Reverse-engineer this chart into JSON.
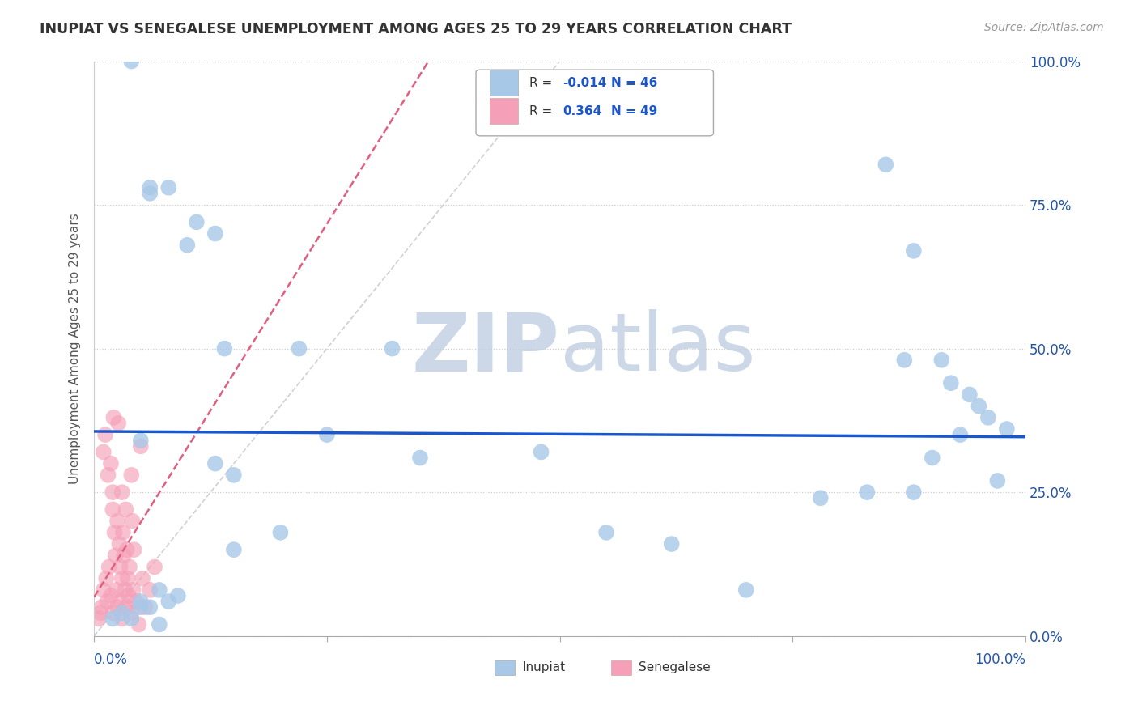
{
  "title": "INUPIAT VS SENEGALESE UNEMPLOYMENT AMONG AGES 25 TO 29 YEARS CORRELATION CHART",
  "source": "Source: ZipAtlas.com",
  "ylabel": "Unemployment Among Ages 25 to 29 years",
  "ytick_labels": [
    "0.0%",
    "25.0%",
    "50.0%",
    "75.0%",
    "100.0%"
  ],
  "ytick_values": [
    0,
    0.25,
    0.5,
    0.75,
    1.0
  ],
  "xlim": [
    0,
    1
  ],
  "ylim": [
    0,
    1
  ],
  "inupiat_R": -0.014,
  "inupiat_N": 46,
  "senegalese_R": 0.364,
  "senegalese_N": 49,
  "inupiat_color": "#a8c8e8",
  "senegalese_color": "#f5a0b8",
  "inupiat_line_color": "#1a56cc",
  "senegalese_line_color": "#e06080",
  "watermark_color": "#ccd8e8",
  "inupiat_x": [
    0.04,
    0.06,
    0.08,
    0.11,
    0.13,
    0.14,
    0.22,
    0.32,
    0.35,
    0.48,
    0.55,
    0.62,
    0.7,
    0.78,
    0.83,
    0.85,
    0.87,
    0.88,
    0.88,
    0.9,
    0.91,
    0.92,
    0.93,
    0.94,
    0.95,
    0.96,
    0.97,
    0.98,
    0.02,
    0.03,
    0.04,
    0.05,
    0.05,
    0.05,
    0.06,
    0.06,
    0.07,
    0.07,
    0.08,
    0.09,
    0.1,
    0.13,
    0.15,
    0.15,
    0.2,
    0.25
  ],
  "inupiat_y": [
    1.0,
    0.77,
    0.78,
    0.72,
    0.7,
    0.5,
    0.5,
    0.5,
    0.31,
    0.32,
    0.18,
    0.16,
    0.08,
    0.24,
    0.25,
    0.82,
    0.48,
    0.67,
    0.25,
    0.31,
    0.48,
    0.44,
    0.35,
    0.42,
    0.4,
    0.38,
    0.27,
    0.36,
    0.03,
    0.04,
    0.03,
    0.06,
    0.05,
    0.34,
    0.05,
    0.78,
    0.02,
    0.08,
    0.06,
    0.07,
    0.68,
    0.3,
    0.15,
    0.28,
    0.18,
    0.35
  ],
  "senegalese_x": [
    0.005,
    0.007,
    0.008,
    0.01,
    0.01,
    0.012,
    0.013,
    0.014,
    0.015,
    0.016,
    0.018,
    0.018,
    0.02,
    0.02,
    0.02,
    0.021,
    0.022,
    0.023,
    0.024,
    0.025,
    0.025,
    0.026,
    0.027,
    0.028,
    0.029,
    0.03,
    0.03,
    0.03,
    0.031,
    0.032,
    0.033,
    0.034,
    0.035,
    0.035,
    0.036,
    0.037,
    0.038,
    0.04,
    0.04,
    0.041,
    0.042,
    0.043,
    0.045,
    0.048,
    0.05,
    0.052,
    0.055,
    0.06,
    0.065
  ],
  "senegalese_y": [
    0.03,
    0.04,
    0.05,
    0.32,
    0.08,
    0.35,
    0.1,
    0.06,
    0.28,
    0.12,
    0.3,
    0.07,
    0.22,
    0.25,
    0.04,
    0.38,
    0.18,
    0.14,
    0.08,
    0.2,
    0.05,
    0.37,
    0.16,
    0.12,
    0.06,
    0.25,
    0.1,
    0.03,
    0.18,
    0.14,
    0.08,
    0.22,
    0.05,
    0.15,
    0.1,
    0.07,
    0.12,
    0.28,
    0.04,
    0.2,
    0.08,
    0.15,
    0.06,
    0.02,
    0.33,
    0.1,
    0.05,
    0.08,
    0.12
  ]
}
